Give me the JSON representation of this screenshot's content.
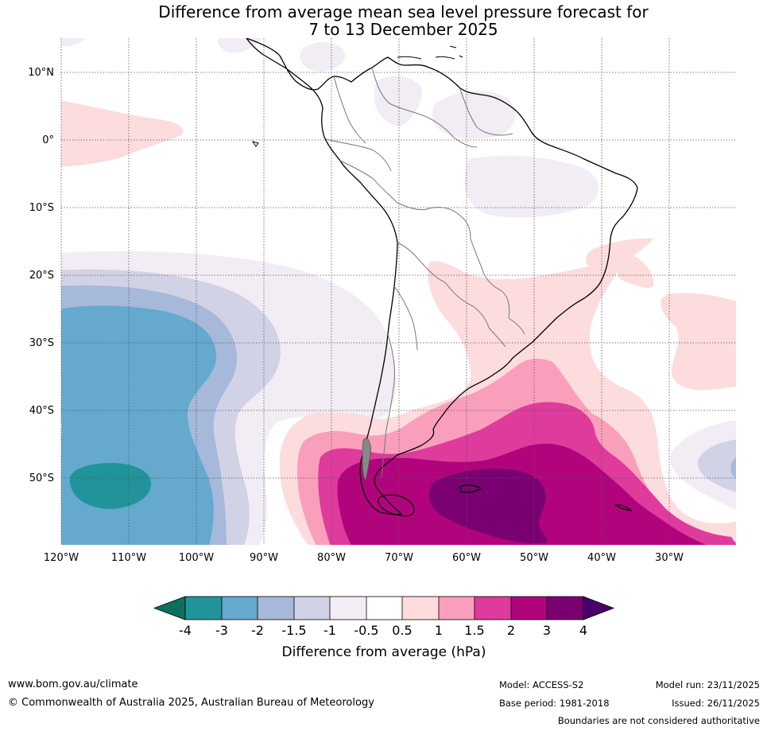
{
  "title": {
    "line1": "Difference from average mean sea level pressure forecast for",
    "line2": "7 to 13 December 2025"
  },
  "map": {
    "lat_labels": [
      "10°N",
      "0°",
      "10°S",
      "20°S",
      "30°S",
      "40°S",
      "50°S"
    ],
    "lon_labels": [
      "120°W",
      "110°W",
      "100°W",
      "90°W",
      "80°W",
      "70°W",
      "60°W",
      "50°W",
      "40°W",
      "30°W"
    ]
  },
  "colorbar": {
    "tick_labels": [
      "-4",
      "-3",
      "-2",
      "-1.5",
      "-1",
      "-0.5",
      "0.5",
      "1",
      "1.5",
      "2",
      "3",
      "4"
    ],
    "label": "Difference from average (hPa)",
    "colors": {
      "below_-4": "#0e6e5e",
      "-4_-3": "#21949b",
      "-3_-2": "#65a9ce",
      "-2_-1.5": "#a6b9da",
      "-1.5_-1": "#d2d2e6",
      "-1_-0.5": "#f2ecf4",
      "-0.5_0.5": "#ffffff",
      "0.5_1": "#fddcdd",
      "1_1.5": "#f99fbb",
      "1.5_2": "#de3b9c",
      "2_3": "#b1047c",
      "3_4": "#7a0072",
      "above_4": "#4a006a"
    }
  },
  "footer": {
    "website": "www.bom.gov.au/climate",
    "copyright": "© Commonwealth of Australia 2025, Australian Bureau of Meteorology",
    "model": "Model: ACCESS-S2",
    "base_period": "Base period: 1981-2018",
    "model_run": "Model run: 23/11/2025",
    "issued": "Issued: 26/11/2025",
    "disclaimer": "Boundaries are not considered authoritative"
  }
}
